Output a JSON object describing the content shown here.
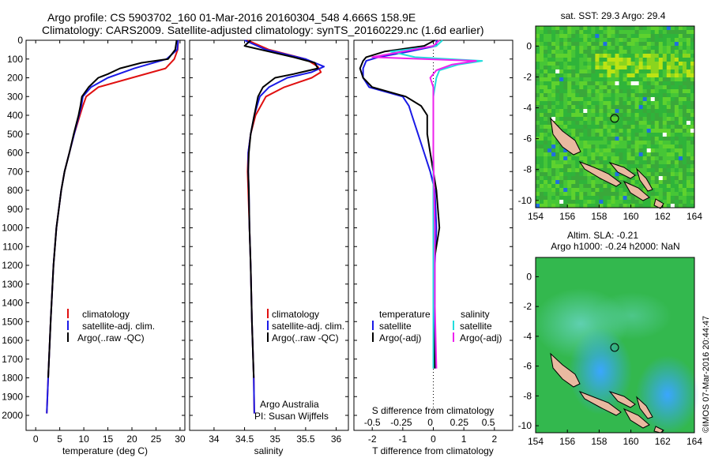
{
  "header": {
    "line1": "Argo profile: CS 5903702_160 01-Mar-2016 20160304_548 4.666S 158.9E",
    "line2": "Climatology: CARS2009. Satellite-adjusted climatology: synTS_20160229.nc (1.6d earlier)"
  },
  "colors": {
    "climatology": "#e01010",
    "satellite": "#1a1ae6",
    "argo": "#000000",
    "sal_satellite": "#22dddd",
    "sal_argo": "#ee22ee",
    "land": "#e9b9a0"
  },
  "chart_data": [
    {
      "type": "line",
      "xlabel": "temperature (deg C)",
      "xlim": [
        -2,
        31
      ],
      "ylim": [
        0,
        2080
      ],
      "xticks": [
        0,
        5,
        10,
        15,
        20,
        25,
        30
      ],
      "yticks": [
        0,
        100,
        200,
        300,
        400,
        500,
        600,
        700,
        800,
        900,
        1000,
        1100,
        1200,
        1300,
        1400,
        1500,
        1600,
        1700,
        1800,
        1900,
        2000
      ],
      "legend": [
        "climatology",
        "satellite-adj. clim.",
        "Argo(..raw -QC)"
      ],
      "series": [
        {
          "name": "climatology",
          "depth": [
            0,
            50,
            100,
            150,
            200,
            250,
            300,
            350,
            400,
            500,
            600,
            700,
            800,
            1000,
            1200,
            1500,
            1800,
            1990
          ],
          "values": [
            29.6,
            29.5,
            28.8,
            27.0,
            20.0,
            13.0,
            10.5,
            9.8,
            9.2,
            8.0,
            7.0,
            6.0,
            5.3,
            4.3,
            3.7,
            3.1,
            2.6,
            2.3
          ]
        },
        {
          "name": "satellite-adj. clim.",
          "depth": [
            0,
            50,
            100,
            150,
            200,
            250,
            300,
            350,
            400,
            500,
            600,
            700,
            800,
            1000,
            1200,
            1500,
            1800,
            1990
          ],
          "values": [
            29.6,
            29.4,
            27.2,
            20.5,
            15.0,
            11.5,
            9.8,
            9.5,
            9.0,
            8.0,
            7.0,
            6.0,
            5.3,
            4.3,
            3.7,
            3.1,
            2.6,
            2.3
          ]
        },
        {
          "name": "Argo(..raw -QC)",
          "depth": [
            0,
            50,
            100,
            120,
            150,
            180,
            200,
            250,
            300,
            350,
            400,
            500,
            600,
            700,
            800,
            1000,
            1200,
            1500,
            1800
          ],
          "values": [
            29.3,
            29.0,
            27.5,
            22.0,
            17.5,
            15.0,
            13.0,
            11.0,
            9.6,
            9.3,
            8.9,
            7.9,
            7.0,
            6.0,
            5.3,
            4.3,
            3.7,
            3.1,
            2.6
          ]
        }
      ]
    },
    {
      "type": "line",
      "xlabel": "salinity",
      "xlim": [
        33.6,
        36.2
      ],
      "ylim": [
        0,
        2080
      ],
      "xticks": [
        34,
        34.5,
        35,
        35.5,
        36
      ],
      "legend": [
        "climatology",
        "satellite-adj. clim.",
        "Argo(..raw -QC)"
      ],
      "annotation": [
        "Argo Australia",
        "PI: Susan Wijffels"
      ],
      "series": [
        {
          "name": "climatology",
          "depth": [
            0,
            50,
            100,
            140,
            170,
            200,
            250,
            300,
            400,
            500,
            600,
            700,
            800,
            1000,
            1200,
            1500,
            1800,
            1990
          ],
          "values": [
            34.55,
            34.9,
            35.5,
            35.7,
            35.75,
            35.6,
            35.15,
            34.85,
            34.68,
            34.6,
            34.56,
            34.55,
            34.56,
            34.58,
            34.6,
            34.62,
            34.65,
            34.66
          ]
        },
        {
          "name": "satellite-adj. clim.",
          "depth": [
            0,
            50,
            100,
            140,
            170,
            200,
            250,
            300,
            400,
            500,
            600,
            700,
            800,
            1000,
            1200,
            1500,
            1800,
            1990
          ],
          "values": [
            34.5,
            34.85,
            35.5,
            35.8,
            35.6,
            35.2,
            34.9,
            34.75,
            34.66,
            34.6,
            34.56,
            34.56,
            34.57,
            34.58,
            34.6,
            34.62,
            34.65,
            34.66
          ]
        },
        {
          "name": "Argo(..raw -QC)",
          "depth": [
            0,
            30,
            60,
            90,
            120,
            150,
            180,
            200,
            250,
            300,
            400,
            500,
            600,
            700,
            800,
            1000,
            1200,
            1500,
            1800
          ],
          "values": [
            34.6,
            34.5,
            34.9,
            35.3,
            35.65,
            35.7,
            35.3,
            35.0,
            34.8,
            34.72,
            34.66,
            34.6,
            34.57,
            34.56,
            34.57,
            34.58,
            34.6,
            34.62,
            34.65
          ]
        }
      ]
    },
    {
      "type": "line",
      "xlabel": "T difference from climatology",
      "top_xlabel": "S difference from climatology",
      "xlim": [
        -2.6,
        2.6
      ],
      "ylim": [
        0,
        2080
      ],
      "xticks": [
        -2,
        -1,
        0,
        1,
        2
      ],
      "top_xticks": [
        "-0.5",
        "-0.25",
        "0",
        "0.25",
        "0.5"
      ],
      "legend_titles": [
        "temperature",
        "salinity"
      ],
      "legend": [
        "satellite",
        "Argo(-adj)",
        "satellite",
        "Argo(-adj)"
      ],
      "series": [
        {
          "name": "satellite",
          "depth": [
            0,
            30,
            60,
            90,
            110,
            150,
            200,
            250,
            300,
            350,
            400,
            500,
            600,
            700,
            800,
            1000,
            1200,
            1500,
            1750
          ],
          "values": [
            0.1,
            0.1,
            -0.8,
            -1.8,
            -2.2,
            -2.3,
            -2.3,
            -2.1,
            -1.0,
            -0.8,
            -0.7,
            -0.5,
            -0.3,
            -0.1,
            0.05,
            0.1,
            0.05,
            0.05,
            0.05
          ]
        },
        {
          "name": "Argo(-adj)",
          "depth": [
            0,
            30,
            60,
            90,
            110,
            150,
            200,
            250,
            300,
            350,
            400,
            500,
            600,
            700,
            800,
            1000,
            1200,
            1500,
            1750
          ],
          "values": [
            0.05,
            -0.3,
            -1.6,
            -2.2,
            -2.3,
            -2.4,
            -2.3,
            -2.0,
            -0.9,
            -0.4,
            -0.2,
            -0.2,
            -0.1,
            0.0,
            0.1,
            0.2,
            0.0,
            0.0,
            0.05
          ]
        },
        {
          "name": "satellite",
          "depth": [
            0,
            30,
            60,
            90,
            110,
            130,
            160,
            200,
            250,
            300,
            400,
            600,
            1000,
            1400,
            1750
          ],
          "values": [
            0.3,
            0.1,
            -1.4,
            -0.6,
            1.6,
            0.8,
            0.2,
            0.1,
            0.05,
            0.0,
            0.0,
            0.0,
            0.0,
            0.0,
            0.0
          ]
        },
        {
          "name": "Argo(-adj)",
          "depth": [
            0,
            30,
            60,
            90,
            110,
            130,
            160,
            200,
            250,
            300,
            400,
            600,
            1000,
            1400,
            1750
          ],
          "values": [
            0.2,
            0.0,
            -1.0,
            -2.0,
            1.4,
            0.6,
            0.1,
            -0.1,
            0.0,
            0.0,
            0.0,
            0.0,
            0.05,
            0.05,
            0.1
          ]
        }
      ]
    }
  ],
  "maps": {
    "sst": {
      "title": "sat. SST: 29.3 Argo: 29.4",
      "xticks": [
        "154",
        "156",
        "158",
        "160",
        "162",
        "164"
      ],
      "yticks": [
        "0",
        "-2",
        "-4",
        "-6",
        "-8",
        "-10"
      ]
    },
    "sla": {
      "title1": "Altim. SLA: -0.21",
      "title2": "Argo h1000: -0.24 h2000: NaN",
      "xticks": [
        "154",
        "156",
        "158",
        "160",
        "162",
        "164"
      ],
      "yticks": [
        "0",
        "-2",
        "-4",
        "-6",
        "-8",
        "-10"
      ]
    },
    "credit": "©IMOS 07-Mar-2016 20:44:47"
  }
}
